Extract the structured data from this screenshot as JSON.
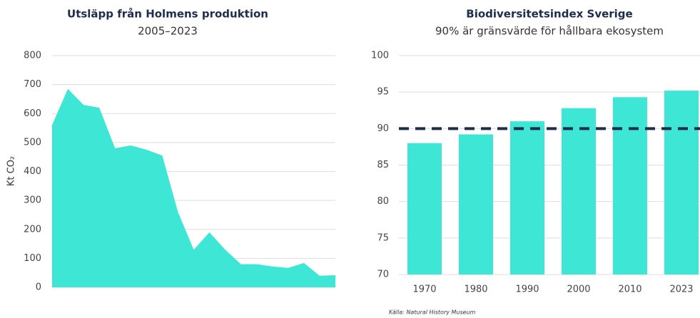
{
  "chart_data": [
    {
      "type": "area",
      "title": "Utsläpp från Holmens produktion",
      "subtitle": "2005–2023",
      "y_label": "Kt CO₂",
      "color": "#3ee6d6",
      "values": [
        560,
        685,
        630,
        620,
        480,
        490,
        475,
        455,
        260,
        130,
        190,
        130,
        80,
        80,
        72,
        67,
        84,
        40,
        42
      ],
      "ylim": [
        0,
        800
      ],
      "yticks": [
        0,
        100,
        200,
        300,
        400,
        500,
        600,
        700,
        800
      ],
      "grid": true
    },
    {
      "type": "bar",
      "title": "Biodiversitetsindex Sverige",
      "subtitle": "90% är gränsvärde för hållbara ekosystem",
      "color": "#3ee6d6",
      "categories": [
        "1970",
        "1980",
        "1990",
        "2000",
        "2010",
        "2023"
      ],
      "values": [
        88,
        89.2,
        91,
        92.8,
        94.3,
        95.2
      ],
      "ylim": [
        70,
        100
      ],
      "yticks": [
        70,
        75,
        80,
        85,
        90,
        95,
        100
      ],
      "grid": true,
      "reference_line": 90,
      "reference_color": "#1e2d4a",
      "source": "Källa: Natural History Museum"
    }
  ]
}
